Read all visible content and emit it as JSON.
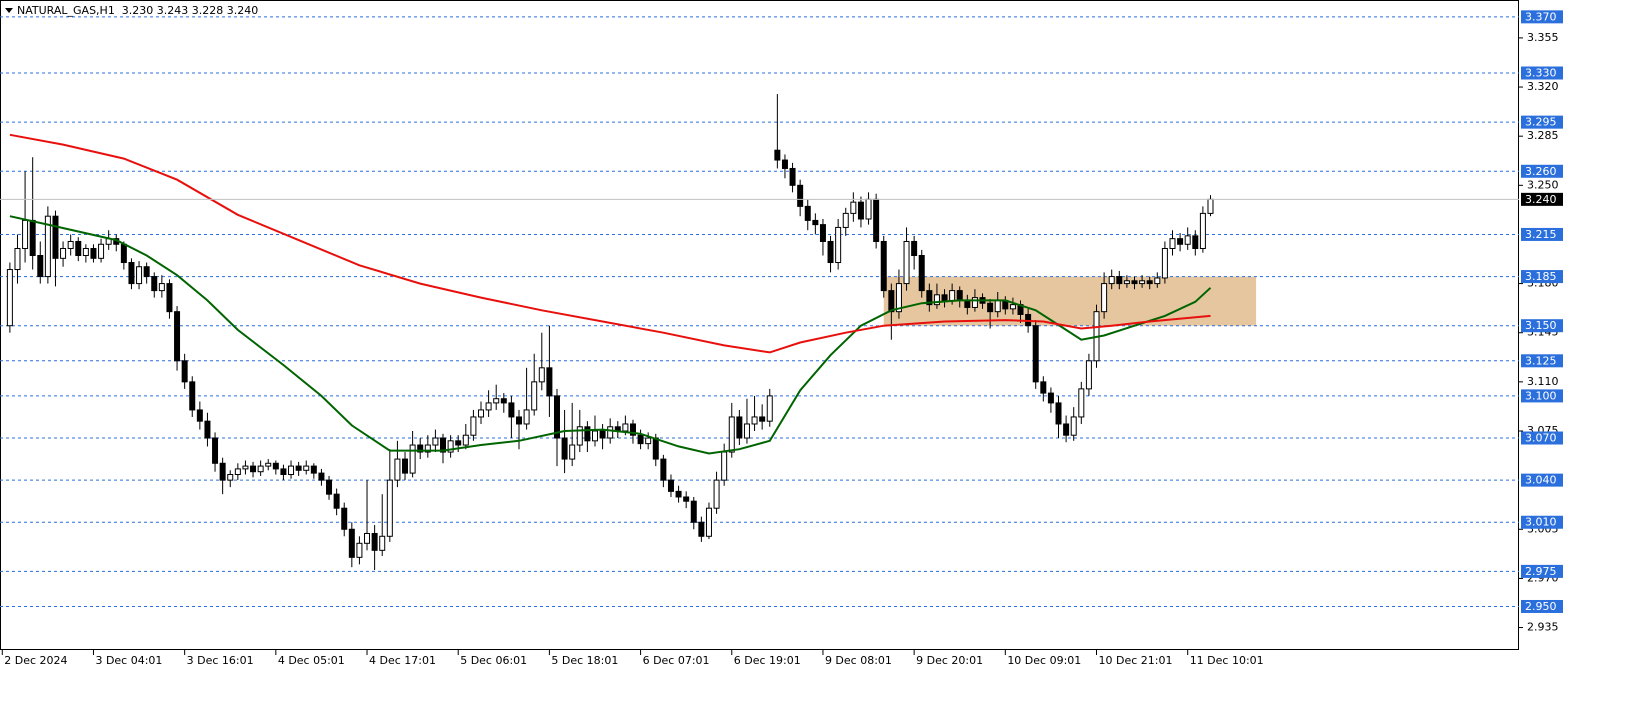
{
  "chart_data": {
    "type": "candlestick",
    "title": "NATURAL_GAS,H1  3.230 3.243 3.228 3.240",
    "up_color": "#ffffff",
    "down_color": "#000000",
    "xlim": [
      -1.3,
      198.6
    ],
    "ylim": [
      2.919,
      3.382
    ],
    "xticks": [
      {
        "value": -1,
        "label": "2 Dec 2024"
      },
      {
        "value": 11,
        "label": "3 Dec 04:01"
      },
      {
        "value": 23,
        "label": "3 Dec 16:01"
      },
      {
        "value": 35,
        "label": "4 Dec 05:01"
      },
      {
        "value": 47,
        "label": "4 Dec 17:01"
      },
      {
        "value": 59,
        "label": "5 Dec 06:01"
      },
      {
        "value": 71,
        "label": "5 Dec 18:01"
      },
      {
        "value": 83,
        "label": "6 Dec 07:01"
      },
      {
        "value": 95,
        "label": "6 Dec 19:01"
      },
      {
        "value": 107,
        "label": "9 Dec 08:01"
      },
      {
        "value": 119,
        "label": "9 Dec 20:01"
      },
      {
        "value": 131,
        "label": "10 Dec 09:01"
      },
      {
        "value": 143,
        "label": "10 Dec 21:01"
      },
      {
        "value": 155,
        "label": "11 Dec 10:01"
      }
    ],
    "yticks": [
      3.355,
      {
        "value": 3.32,
        "label": "3.320"
      },
      3.285,
      {
        "value": 3.25,
        "label": "3.250"
      },
      {
        "value": 3.18,
        "label": "3.180"
      },
      3.145,
      {
        "value": 3.11,
        "label": "3.110"
      },
      3.075,
      3.005,
      {
        "value": 2.97,
        "label": "2.970"
      },
      2.935
    ],
    "levels": {
      "color": "#2a6fdb",
      "values": [
        {
          "value": 3.37,
          "label": "3.370"
        },
        {
          "value": 3.33,
          "label": "3.330"
        },
        3.295,
        {
          "value": 3.26,
          "label": "3.260"
        },
        3.215,
        3.185,
        {
          "value": 3.15,
          "label": "3.150"
        },
        3.125,
        {
          "value": 3.1,
          "label": "3.100"
        },
        {
          "value": 3.07,
          "label": "3.070"
        },
        {
          "value": 3.04,
          "label": "3.040"
        },
        {
          "value": 3.01,
          "label": "3.010"
        },
        2.975,
        {
          "value": 2.95,
          "label": "2.950"
        }
      ]
    },
    "last_price": {
      "value": 3.24,
      "label": "3.240",
      "color": "#000000"
    },
    "zone": {
      "color": "#deb887",
      "x": [
        115,
        164
      ],
      "y": [
        3.15,
        3.185
      ]
    },
    "lines": [
      {
        "color": "#006400",
        "x": [
          0,
          5,
          14,
          18,
          22,
          26,
          30,
          36,
          41,
          45,
          50,
          57,
          62,
          67,
          73,
          78,
          83,
          88,
          92,
          96,
          100,
          104,
          108,
          112,
          116,
          120,
          125,
          131,
          135,
          139,
          141,
          144,
          148,
          152,
          156,
          158
        ],
        "values": [
          3.228,
          3.222,
          3.211,
          3.2,
          3.186,
          3.168,
          3.147,
          3.122,
          3.1,
          3.079,
          3.061,
          3.061,
          3.065,
          3.068,
          3.075,
          3.076,
          3.073,
          3.064,
          3.059,
          3.062,
          3.068,
          3.104,
          3.129,
          3.15,
          3.161,
          3.166,
          3.168,
          3.168,
          3.161,
          3.147,
          3.14,
          3.143,
          3.15,
          3.157,
          3.167,
          3.177
        ]
      },
      {
        "color": "#e8100c",
        "x": [
          0,
          7,
          15,
          22,
          30,
          38,
          46,
          54,
          62,
          70,
          78,
          86,
          94,
          100,
          104,
          110,
          115,
          123,
          131,
          136,
          141,
          145,
          150,
          158
        ],
        "values": [
          3.286,
          3.279,
          3.269,
          3.254,
          3.229,
          3.211,
          3.193,
          3.18,
          3.17,
          3.161,
          3.153,
          3.145,
          3.136,
          3.131,
          3.138,
          3.145,
          3.15,
          3.153,
          3.154,
          3.153,
          3.148,
          3.15,
          3.153,
          3.157
        ]
      }
    ],
    "candles": [
      [
        3.15,
        3.195,
        3.145,
        3.19
      ],
      [
        3.19,
        3.215,
        3.18,
        3.205
      ],
      [
        3.205,
        3.26,
        3.195,
        3.225
      ],
      [
        3.225,
        3.27,
        3.19,
        3.2
      ],
      [
        3.2,
        3.21,
        3.18,
        3.185
      ],
      [
        3.185,
        3.235,
        3.18,
        3.228
      ],
      [
        3.228,
        3.232,
        3.178,
        3.198
      ],
      [
        3.198,
        3.21,
        3.192,
        3.205
      ],
      [
        3.205,
        3.215,
        3.2,
        3.21
      ],
      [
        3.21,
        3.213,
        3.196,
        3.2
      ],
      [
        3.2,
        3.208,
        3.195,
        3.205
      ],
      [
        3.205,
        3.208,
        3.195,
        3.198
      ],
      [
        3.198,
        3.212,
        3.195,
        3.208
      ],
      [
        3.208,
        3.218,
        3.204,
        3.212
      ],
      [
        3.212,
        3.215,
        3.203,
        3.208
      ],
      [
        3.208,
        3.21,
        3.19,
        3.195
      ],
      [
        3.195,
        3.198,
        3.176,
        3.18
      ],
      [
        3.18,
        3.196,
        3.176,
        3.192
      ],
      [
        3.192,
        3.195,
        3.18,
        3.185
      ],
      [
        3.185,
        3.188,
        3.17,
        3.175
      ],
      [
        3.175,
        3.186,
        3.17,
        3.18
      ],
      [
        3.18,
        3.183,
        3.155,
        3.16
      ],
      [
        3.16,
        3.164,
        3.118,
        3.125
      ],
      [
        3.125,
        3.13,
        3.105,
        3.11
      ],
      [
        3.11,
        3.114,
        3.085,
        3.09
      ],
      [
        3.09,
        3.096,
        3.076,
        3.082
      ],
      [
        3.082,
        3.088,
        3.064,
        3.07
      ],
      [
        3.07,
        3.074,
        3.046,
        3.052
      ],
      [
        3.052,
        3.056,
        3.03,
        3.04
      ],
      [
        3.04,
        3.047,
        3.035,
        3.044
      ],
      [
        3.044,
        3.052,
        3.04,
        3.048
      ],
      [
        3.048,
        3.054,
        3.044,
        3.05
      ],
      [
        3.05,
        3.053,
        3.042,
        3.046
      ],
      [
        3.046,
        3.054,
        3.043,
        3.05
      ],
      [
        3.05,
        3.055,
        3.047,
        3.052
      ],
      [
        3.052,
        3.054,
        3.044,
        3.048
      ],
      [
        3.048,
        3.051,
        3.04,
        3.044
      ],
      [
        3.044,
        3.054,
        3.041,
        3.05
      ],
      [
        3.05,
        3.053,
        3.043,
        3.047
      ],
      [
        3.047,
        3.054,
        3.044,
        3.05
      ],
      [
        3.05,
        3.052,
        3.041,
        3.045
      ],
      [
        3.045,
        3.048,
        3.036,
        3.04
      ],
      [
        3.04,
        3.043,
        3.026,
        3.03
      ],
      [
        3.03,
        3.034,
        3.015,
        3.02
      ],
      [
        3.02,
        3.024,
        3.0,
        3.005
      ],
      [
        3.005,
        3.01,
        2.978,
        2.985
      ],
      [
        2.985,
        3.0,
        2.98,
        2.995
      ],
      [
        2.995,
        3.04,
        2.99,
        3.002
      ],
      [
        3.002,
        3.008,
        2.976,
        2.99
      ],
      [
        2.99,
        3.03,
        2.986,
        3.0
      ],
      [
        3.0,
        3.062,
        2.996,
        3.04
      ],
      [
        3.04,
        3.068,
        3.035,
        3.055
      ],
      [
        3.055,
        3.06,
        3.04,
        3.045
      ],
      [
        3.045,
        3.075,
        3.042,
        3.065
      ],
      [
        3.065,
        3.07,
        3.055,
        3.06
      ],
      [
        3.06,
        3.072,
        3.056,
        3.065
      ],
      [
        3.065,
        3.076,
        3.06,
        3.07
      ],
      [
        3.07,
        3.073,
        3.052,
        3.06
      ],
      [
        3.06,
        3.072,
        3.056,
        3.068
      ],
      [
        3.068,
        3.072,
        3.06,
        3.065
      ],
      [
        3.065,
        3.08,
        3.062,
        3.072
      ],
      [
        3.072,
        3.09,
        3.068,
        3.085
      ],
      [
        3.085,
        3.096,
        3.08,
        3.09
      ],
      [
        3.09,
        3.104,
        3.085,
        3.095
      ],
      [
        3.095,
        3.108,
        3.09,
        3.098
      ],
      [
        3.098,
        3.102,
        3.088,
        3.095
      ],
      [
        3.095,
        3.1,
        3.07,
        3.085
      ],
      [
        3.085,
        3.09,
        3.062,
        3.08
      ],
      [
        3.08,
        3.12,
        3.076,
        3.09
      ],
      [
        3.09,
        3.13,
        3.086,
        3.11
      ],
      [
        3.11,
        3.145,
        3.104,
        3.12
      ],
      [
        3.12,
        3.15,
        3.085,
        3.1
      ],
      [
        3.1,
        3.105,
        3.05,
        3.07
      ],
      [
        3.07,
        3.09,
        3.045,
        3.055
      ],
      [
        3.055,
        3.095,
        3.05,
        3.065
      ],
      [
        3.065,
        3.09,
        3.06,
        3.078
      ],
      [
        3.078,
        3.082,
        3.06,
        3.068
      ],
      [
        3.068,
        3.086,
        3.064,
        3.075
      ],
      [
        3.075,
        3.08,
        3.062,
        3.07
      ],
      [
        3.07,
        3.084,
        3.066,
        3.078
      ],
      [
        3.078,
        3.082,
        3.07,
        3.075
      ],
      [
        3.075,
        3.086,
        3.072,
        3.08
      ],
      [
        3.08,
        3.083,
        3.066,
        3.072
      ],
      [
        3.072,
        3.076,
        3.062,
        3.066
      ],
      [
        3.066,
        3.074,
        3.062,
        3.07
      ],
      [
        3.07,
        3.073,
        3.05,
        3.055
      ],
      [
        3.055,
        3.058,
        3.035,
        3.04
      ],
      [
        3.04,
        3.044,
        3.028,
        3.032
      ],
      [
        3.032,
        3.036,
        3.024,
        3.028
      ],
      [
        3.028,
        3.032,
        3.02,
        3.025
      ],
      [
        3.025,
        3.028,
        3.005,
        3.01
      ],
      [
        3.01,
        3.014,
        2.996,
        3.0
      ],
      [
        3.0,
        3.024,
        2.998,
        3.02
      ],
      [
        3.02,
        3.046,
        3.016,
        3.04
      ],
      [
        3.04,
        3.066,
        3.036,
        3.06
      ],
      [
        3.06,
        3.095,
        3.056,
        3.085
      ],
      [
        3.085,
        3.09,
        3.065,
        3.07
      ],
      [
        3.07,
        3.098,
        3.066,
        3.08
      ],
      [
        3.08,
        3.1,
        3.075,
        3.085
      ],
      [
        3.085,
        3.094,
        3.076,
        3.082
      ],
      [
        3.082,
        3.105,
        3.078,
        3.1
      ],
      [
        3.275,
        3.315,
        3.262,
        3.268
      ],
      [
        3.268,
        3.272,
        3.255,
        3.262
      ],
      [
        3.262,
        3.266,
        3.245,
        3.25
      ],
      [
        3.25,
        3.254,
        3.228,
        3.235
      ],
      [
        3.235,
        3.24,
        3.218,
        3.225
      ],
      [
        3.225,
        3.23,
        3.215,
        3.222
      ],
      [
        3.222,
        3.226,
        3.2,
        3.21
      ],
      [
        3.21,
        3.214,
        3.188,
        3.195
      ],
      [
        3.195,
        3.226,
        3.19,
        3.22
      ],
      [
        3.22,
        3.234,
        3.214,
        3.23
      ],
      [
        3.23,
        3.245,
        3.224,
        3.238
      ],
      [
        3.238,
        3.242,
        3.22,
        3.226
      ],
      [
        3.226,
        3.245,
        3.222,
        3.24
      ],
      [
        3.24,
        3.244,
        3.205,
        3.21
      ],
      [
        3.21,
        3.214,
        3.17,
        3.175
      ],
      [
        3.175,
        3.18,
        3.14,
        3.16
      ],
      [
        3.16,
        3.19,
        3.155,
        3.18
      ],
      [
        3.18,
        3.22,
        3.175,
        3.21
      ],
      [
        3.21,
        3.214,
        3.19,
        3.2
      ],
      [
        3.2,
        3.204,
        3.17,
        3.175
      ],
      [
        3.175,
        3.18,
        3.16,
        3.165
      ],
      [
        3.165,
        3.18,
        3.162,
        3.172
      ],
      [
        3.172,
        3.176,
        3.163,
        3.168
      ],
      [
        3.168,
        3.18,
        3.165,
        3.175
      ],
      [
        3.175,
        3.178,
        3.163,
        3.168
      ],
      [
        3.168,
        3.172,
        3.158,
        3.163
      ],
      [
        3.163,
        3.176,
        3.16,
        3.17
      ],
      [
        3.17,
        3.173,
        3.162,
        3.166
      ],
      [
        3.166,
        3.169,
        3.148,
        3.16
      ],
      [
        3.16,
        3.174,
        3.156,
        3.168
      ],
      [
        3.168,
        3.171,
        3.158,
        3.162
      ],
      [
        3.162,
        3.17,
        3.158,
        3.165
      ],
      [
        3.165,
        3.168,
        3.152,
        3.158
      ],
      [
        3.158,
        3.162,
        3.145,
        3.15
      ],
      [
        3.15,
        3.154,
        3.105,
        3.11
      ],
      [
        3.11,
        3.114,
        3.096,
        3.102
      ],
      [
        3.102,
        3.106,
        3.088,
        3.095
      ],
      [
        3.095,
        3.1,
        3.07,
        3.08
      ],
      [
        3.08,
        3.086,
        3.067,
        3.072
      ],
      [
        3.072,
        3.092,
        3.068,
        3.085
      ],
      [
        3.085,
        3.11,
        3.08,
        3.105
      ],
      [
        3.105,
        3.13,
        3.1,
        3.125
      ],
      [
        3.125,
        3.165,
        3.12,
        3.16
      ],
      [
        3.16,
        3.188,
        3.155,
        3.18
      ],
      [
        3.18,
        3.19,
        3.176,
        3.185
      ],
      [
        3.185,
        3.189,
        3.176,
        3.18
      ],
      [
        3.18,
        3.186,
        3.177,
        3.182
      ],
      [
        3.182,
        3.185,
        3.176,
        3.18
      ],
      [
        3.18,
        3.186,
        3.177,
        3.182
      ],
      [
        3.182,
        3.185,
        3.176,
        3.18
      ],
      [
        3.18,
        3.188,
        3.177,
        3.184
      ],
      [
        3.184,
        3.21,
        3.18,
        3.205
      ],
      [
        3.205,
        3.218,
        3.2,
        3.212
      ],
      [
        3.212,
        3.216,
        3.203,
        3.208
      ],
      [
        3.208,
        3.22,
        3.204,
        3.214
      ],
      [
        3.214,
        3.218,
        3.2,
        3.205
      ],
      [
        3.205,
        3.235,
        3.202,
        3.23
      ],
      [
        3.23,
        3.243,
        3.228,
        3.24
      ]
    ]
  }
}
